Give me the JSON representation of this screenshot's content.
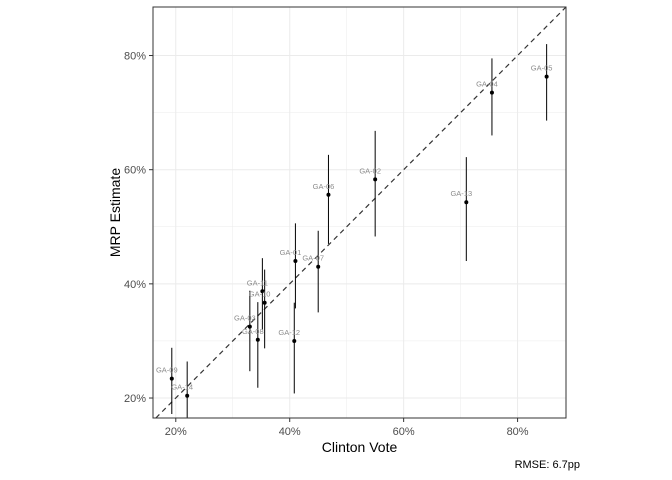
{
  "chart_data": {
    "type": "scatter",
    "xlabel": "Clinton Vote",
    "ylabel": "MRP Estimate",
    "xlim": [
      0.16,
      0.885
    ],
    "ylim": [
      0.165,
      0.885
    ],
    "xticks": [
      0.2,
      0.4,
      0.6,
      0.8
    ],
    "yticks": [
      0.2,
      0.4,
      0.6,
      0.8
    ],
    "tick_labels": [
      "20%",
      "40%",
      "60%",
      "80%"
    ],
    "grid": true,
    "reference_line": "y = x (dashed)",
    "points": [
      {
        "label": "GA-09",
        "x": 0.193,
        "y": 0.234,
        "lo": 0.172,
        "hi": 0.288
      },
      {
        "label": "GA-14",
        "x": 0.22,
        "y": 0.204,
        "lo": 0.158,
        "hi": 0.264
      },
      {
        "label": "GA-03",
        "x": 0.33,
        "y": 0.325,
        "lo": 0.247,
        "hi": 0.388
      },
      {
        "label": "GA-08",
        "x": 0.344,
        "y": 0.302,
        "lo": 0.218,
        "hi": 0.368
      },
      {
        "label": "GA-11",
        "x": 0.352,
        "y": 0.387,
        "lo": 0.32,
        "hi": 0.445
      },
      {
        "label": "GA-10",
        "x": 0.356,
        "y": 0.367,
        "lo": 0.287,
        "hi": 0.425
      },
      {
        "label": "GA-12",
        "x": 0.408,
        "y": 0.3,
        "lo": 0.208,
        "hi": 0.367
      },
      {
        "label": "GA-01",
        "x": 0.41,
        "y": 0.44,
        "lo": 0.357,
        "hi": 0.506
      },
      {
        "label": "GA-07",
        "x": 0.45,
        "y": 0.43,
        "lo": 0.35,
        "hi": 0.493
      },
      {
        "label": "GA-06",
        "x": 0.468,
        "y": 0.556,
        "lo": 0.47,
        "hi": 0.626
      },
      {
        "label": "GA-02",
        "x": 0.55,
        "y": 0.583,
        "lo": 0.483,
        "hi": 0.668
      },
      {
        "label": "GA-13",
        "x": 0.71,
        "y": 0.543,
        "lo": 0.44,
        "hi": 0.622
      },
      {
        "label": "GA-04",
        "x": 0.755,
        "y": 0.735,
        "lo": 0.66,
        "hi": 0.795
      },
      {
        "label": "GA-05",
        "x": 0.851,
        "y": 0.763,
        "lo": 0.686,
        "hi": 0.82
      }
    ]
  },
  "caption": "RMSE: 6.7pp",
  "colors": {
    "point": "#000000",
    "errorbar": "#000000",
    "label": "#8c8c8c",
    "grid": "#ebebeb",
    "border": "#333333",
    "refline": "#333333"
  }
}
